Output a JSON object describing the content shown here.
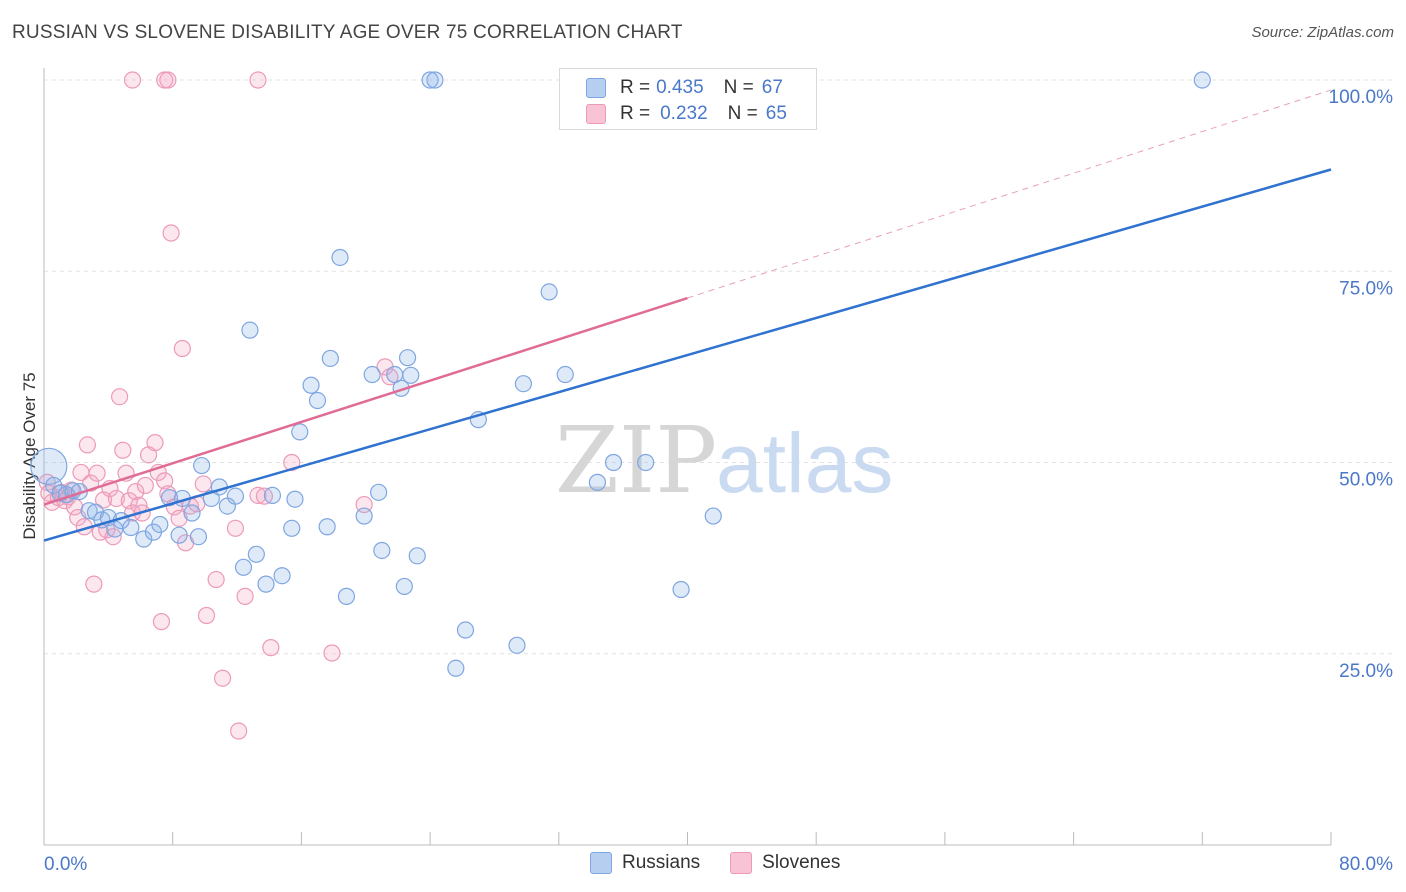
{
  "title": "RUSSIAN VS SLOVENE DISABILITY AGE OVER 75 CORRELATION CHART",
  "source": "Source: ZipAtlas.com",
  "watermark": {
    "zip": "ZIP",
    "atlas": "atlas"
  },
  "legend": {
    "series": [
      {
        "r_label": "R =",
        "r_value": "0.435",
        "n_label": "N =",
        "n_value": "67"
      },
      {
        "r_label": "R =",
        "r_value": "0.232",
        "n_label": "N =",
        "n_value": "65"
      }
    ]
  },
  "bottom_legend": [
    "Russians",
    "Slovenes"
  ],
  "chart_data": {
    "type": "scatter",
    "title": "RUSSIAN VS SLOVENE DISABILITY AGE OVER 75 CORRELATION CHART",
    "xlabel": "",
    "ylabel": "Disability Age Over 75",
    "xlim": [
      0,
      80
    ],
    "ylim": [
      0,
      100
    ],
    "x_tick_labels": [
      "0.0%",
      "80.0%"
    ],
    "y_tick_labels": [
      "100.0%",
      "75.0%",
      "50.0%",
      "25.0%"
    ],
    "y_ticks": [
      100,
      75,
      50,
      25
    ],
    "grid": true,
    "legend_position": "top-center",
    "colors": {
      "Russians": "#6f9fe0",
      "Slovenes": "#ef8fb0",
      "russians_line": "#2f72d0",
      "slovenes_line": "#e06c96"
    },
    "series": [
      {
        "name": "Russians",
        "r": 0.435,
        "n": 67,
        "trend": {
          "x": [
            0,
            80
          ],
          "y": [
            39.8,
            88.3
          ]
        },
        "points": [
          [
            0.3,
            49.5
          ],
          [
            0.6,
            47.0
          ],
          [
            1.0,
            46.0
          ],
          [
            1.4,
            45.8
          ],
          [
            1.8,
            46.3
          ],
          [
            2.2,
            46.2
          ],
          [
            2.8,
            43.7
          ],
          [
            3.2,
            43.5
          ],
          [
            3.6,
            42.5
          ],
          [
            4.0,
            42.8
          ],
          [
            4.4,
            41.3
          ],
          [
            4.8,
            42.4
          ],
          [
            5.4,
            41.5
          ],
          [
            6.2,
            40.0
          ],
          [
            6.8,
            40.9
          ],
          [
            7.2,
            41.9
          ],
          [
            7.8,
            45.4
          ],
          [
            8.4,
            40.5
          ],
          [
            8.6,
            45.3
          ],
          [
            9.2,
            43.4
          ],
          [
            9.6,
            40.3
          ],
          [
            9.8,
            49.6
          ],
          [
            10.4,
            45.3
          ],
          [
            10.9,
            46.8
          ],
          [
            11.4,
            44.3
          ],
          [
            11.9,
            45.6
          ],
          [
            12.4,
            36.3
          ],
          [
            12.8,
            67.3
          ],
          [
            13.2,
            38.0
          ],
          [
            13.8,
            34.1
          ],
          [
            14.2,
            45.7
          ],
          [
            14.8,
            35.2
          ],
          [
            15.4,
            41.4
          ],
          [
            15.6,
            45.2
          ],
          [
            15.9,
            54.0
          ],
          [
            16.6,
            60.1
          ],
          [
            17.0,
            58.1
          ],
          [
            17.6,
            41.6
          ],
          [
            17.8,
            63.6
          ],
          [
            18.4,
            76.8
          ],
          [
            18.8,
            32.5
          ],
          [
            19.9,
            43.0
          ],
          [
            20.4,
            61.5
          ],
          [
            20.8,
            46.1
          ],
          [
            21.0,
            38.5
          ],
          [
            21.8,
            61.5
          ],
          [
            22.2,
            59.7
          ],
          [
            22.4,
            33.8
          ],
          [
            22.6,
            63.7
          ],
          [
            23.2,
            37.8
          ],
          [
            24.0,
            100.0
          ],
          [
            24.3,
            100.0
          ],
          [
            26.2,
            28.1
          ],
          [
            25.6,
            23.1
          ],
          [
            27.0,
            55.6
          ],
          [
            29.4,
            26.1
          ],
          [
            29.8,
            60.3
          ],
          [
            31.4,
            72.3
          ],
          [
            32.4,
            61.5
          ],
          [
            34.4,
            47.4
          ],
          [
            35.4,
            50.0
          ],
          [
            37.4,
            50.0
          ],
          [
            39.6,
            33.4
          ],
          [
            41.6,
            43.0
          ],
          [
            72.0,
            100.0
          ],
          [
            36.6,
            100.0
          ],
          [
            22.8,
            61.4
          ]
        ]
      },
      {
        "name": "Slovenes",
        "r": 0.232,
        "n": 65,
        "trend": {
          "x": [
            0,
            40
          ],
          "y": [
            44.5,
            71.5
          ]
        },
        "trend_extended": {
          "x": [
            40,
            80
          ],
          "y": [
            71.5,
            98.7
          ]
        },
        "points": [
          [
            0.2,
            47.4
          ],
          [
            0.3,
            46.0
          ],
          [
            0.5,
            44.8
          ],
          [
            0.9,
            45.4
          ],
          [
            1.1,
            46.1
          ],
          [
            1.3,
            45.0
          ],
          [
            1.5,
            45.5
          ],
          [
            1.7,
            46.4
          ],
          [
            1.9,
            44.2
          ],
          [
            2.1,
            42.8
          ],
          [
            2.3,
            48.7
          ],
          [
            2.5,
            41.6
          ],
          [
            2.7,
            52.3
          ],
          [
            2.9,
            47.3
          ],
          [
            3.1,
            34.1
          ],
          [
            3.3,
            48.6
          ],
          [
            3.5,
            40.9
          ],
          [
            3.7,
            45.1
          ],
          [
            3.9,
            41.2
          ],
          [
            4.1,
            46.6
          ],
          [
            4.3,
            40.3
          ],
          [
            4.5,
            45.3
          ],
          [
            4.7,
            58.6
          ],
          [
            4.9,
            51.6
          ],
          [
            5.1,
            48.6
          ],
          [
            5.3,
            45.0
          ],
          [
            5.5,
            43.4
          ],
          [
            5.7,
            46.2
          ],
          [
            5.9,
            44.4
          ],
          [
            6.1,
            43.4
          ],
          [
            6.3,
            47.0
          ],
          [
            6.5,
            51.0
          ],
          [
            6.9,
            52.6
          ],
          [
            7.1,
            48.7
          ],
          [
            7.3,
            29.2
          ],
          [
            7.5,
            47.6
          ],
          [
            7.7,
            45.9
          ],
          [
            7.9,
            80.0
          ],
          [
            8.1,
            44.2
          ],
          [
            8.4,
            42.7
          ],
          [
            8.6,
            64.9
          ],
          [
            8.8,
            39.5
          ],
          [
            9.1,
            44.3
          ],
          [
            9.5,
            44.6
          ],
          [
            9.9,
            47.2
          ],
          [
            10.1,
            30.0
          ],
          [
            10.7,
            34.7
          ],
          [
            11.1,
            21.8
          ],
          [
            11.9,
            41.4
          ],
          [
            12.1,
            14.9
          ],
          [
            12.5,
            32.5
          ],
          [
            13.3,
            45.7
          ],
          [
            13.7,
            45.6
          ],
          [
            14.1,
            25.8
          ],
          [
            15.4,
            50.0
          ],
          [
            17.9,
            25.1
          ],
          [
            19.9,
            44.5
          ],
          [
            21.2,
            62.5
          ],
          [
            21.5,
            61.2
          ],
          [
            5.5,
            100.0
          ],
          [
            7.5,
            100.0
          ],
          [
            7.7,
            100.0
          ],
          [
            13.3,
            100.0
          ],
          [
            33.6,
            100.0
          ],
          [
            33.9,
            100.0
          ]
        ]
      }
    ]
  }
}
